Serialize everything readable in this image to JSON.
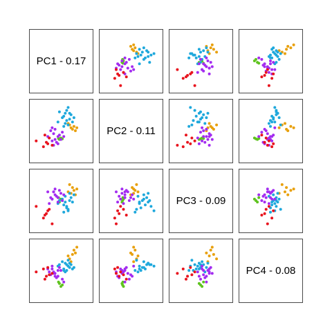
{
  "chart_data": {
    "type": "scatter",
    "layout": "pairs-matrix",
    "variables": [
      "PC1",
      "PC2",
      "PC3",
      "PC4"
    ],
    "diagonal_labels": [
      "PC1 - 0.17",
      "PC2 - 0.11",
      "PC3 - 0.09",
      "PC4 - 0.08"
    ],
    "axis_range": [
      -1,
      1
    ],
    "grid": false,
    "legend": "none",
    "colors": {
      "green": "#5fc31f",
      "orange": "#e8a00c",
      "blue": "#1ea8dc",
      "purple": "#a32cf0",
      "red": "#e8141e"
    },
    "groups": [
      {
        "color": "green",
        "points": [
          [
            -0.05,
            -0.3,
            -0.05,
            -0.45
          ],
          [
            0.0,
            -0.25,
            0.05,
            -0.55
          ],
          [
            0.05,
            -0.28,
            0.0,
            -0.5
          ],
          [
            -0.08,
            -0.27,
            0.1,
            -0.4
          ]
        ]
      },
      {
        "color": "orange",
        "points": [
          [
            0.35,
            0.1,
            0.25,
            0.3
          ],
          [
            0.4,
            0.05,
            0.45,
            0.55
          ],
          [
            0.45,
            0.15,
            0.35,
            0.7
          ],
          [
            0.3,
            0.2,
            0.55,
            0.4
          ],
          [
            0.5,
            0.0,
            0.2,
            0.6
          ],
          [
            0.55,
            0.1,
            0.4,
            0.8
          ],
          [
            0.25,
            0.25,
            0.3,
            0.5
          ]
        ]
      },
      {
        "color": "blue",
        "points": [
          [
            0.2,
            0.7,
            -0.2,
            0.2
          ],
          [
            0.25,
            0.8,
            -0.35,
            0.15
          ],
          [
            0.15,
            0.6,
            -0.05,
            0.25
          ],
          [
            0.1,
            0.5,
            -0.15,
            0.05
          ],
          [
            0.3,
            0.4,
            0.0,
            0.1
          ],
          [
            0.35,
            0.55,
            0.1,
            0.2
          ],
          [
            0.2,
            0.35,
            -0.25,
            0.0
          ],
          [
            0.05,
            0.45,
            0.05,
            0.3
          ],
          [
            -0.1,
            0.3,
            -0.1,
            0.15
          ],
          [
            0.15,
            0.25,
            0.15,
            -0.05
          ],
          [
            0.4,
            0.3,
            -0.05,
            0.05
          ],
          [
            0.45,
            0.45,
            0.2,
            0.1
          ],
          [
            0.25,
            0.2,
            -0.3,
            0.35
          ],
          [
            -0.05,
            0.65,
            0.0,
            0.2
          ],
          [
            0.1,
            0.15,
            -0.4,
            0.0
          ],
          [
            0.3,
            0.6,
            0.25,
            0.25
          ]
        ]
      },
      {
        "color": "purple",
        "points": [
          [
            -0.1,
            -0.2,
            0.1,
            0.0
          ],
          [
            -0.25,
            -0.1,
            0.3,
            -0.1
          ],
          [
            -0.3,
            -0.35,
            0.05,
            0.05
          ],
          [
            -0.2,
            0.05,
            0.2,
            -0.2
          ],
          [
            -0.05,
            -0.15,
            0.35,
            0.1
          ],
          [
            -0.4,
            -0.25,
            -0.1,
            -0.05
          ],
          [
            -0.15,
            -0.4,
            0.15,
            -0.25
          ],
          [
            0.0,
            -0.3,
            0.25,
            0.0
          ],
          [
            -0.35,
            0.0,
            0.1,
            -0.15
          ],
          [
            -0.45,
            -0.2,
            0.3,
            0.05
          ],
          [
            0.05,
            -0.05,
            0.0,
            -0.3
          ],
          [
            -0.2,
            -0.3,
            0.4,
            -0.1
          ],
          [
            -0.3,
            0.1,
            0.05,
            0.15
          ],
          [
            -0.1,
            -0.45,
            -0.05,
            -0.2
          ],
          [
            0.1,
            -0.2,
            0.2,
            -0.4
          ],
          [
            -0.25,
            -0.5,
            0.3,
            -0.05
          ]
        ]
      },
      {
        "color": "red",
        "points": [
          [
            -0.85,
            -0.35,
            -0.2,
            -0.05
          ],
          [
            -0.5,
            -0.4,
            -0.45,
            -0.2
          ],
          [
            -0.6,
            -0.55,
            -0.6,
            0.05
          ],
          [
            -0.4,
            -0.25,
            -0.3,
            -0.15
          ],
          [
            -0.3,
            -0.5,
            -0.8,
            -0.1
          ],
          [
            -0.55,
            -0.15,
            -0.5,
            -0.3
          ],
          [
            -0.45,
            -0.45,
            -0.35,
            0.1
          ]
        ]
      }
    ]
  }
}
